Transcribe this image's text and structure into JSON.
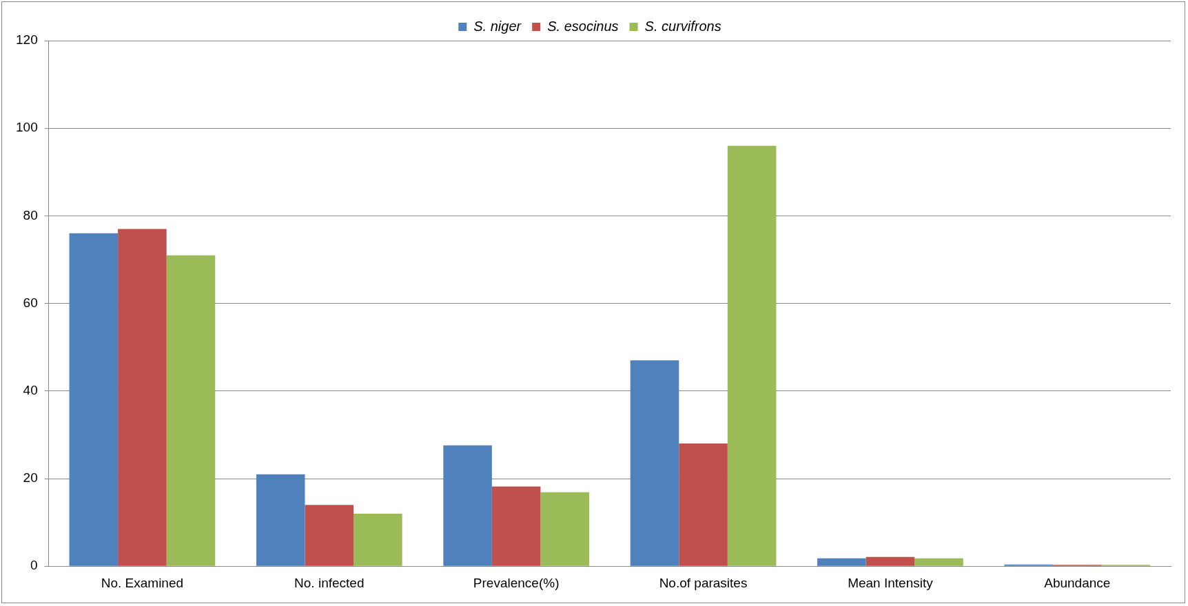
{
  "chart_data": {
    "type": "bar",
    "categories": [
      "No. Examined",
      "No. infected",
      "Prevalence(%)",
      "No.of parasites",
      "Mean Intensity",
      "Abundance"
    ],
    "series": [
      {
        "name": "S. niger",
        "color": "#4f81bd",
        "values": [
          76,
          21,
          27.6,
          47,
          1.8,
          0.4
        ]
      },
      {
        "name": "S. esocinus",
        "color": "#c0504d",
        "values": [
          77,
          14,
          18.2,
          28,
          2.1,
          0.3
        ]
      },
      {
        "name": "S. curvifrons",
        "color": "#9bbb59",
        "values": [
          71,
          12,
          16.9,
          96,
          1.8,
          0.3
        ]
      }
    ],
    "ylim": [
      0,
      120
    ],
    "yticks": [
      0,
      20,
      40,
      60,
      80,
      100,
      120
    ],
    "grid": "y",
    "legend": "top"
  }
}
